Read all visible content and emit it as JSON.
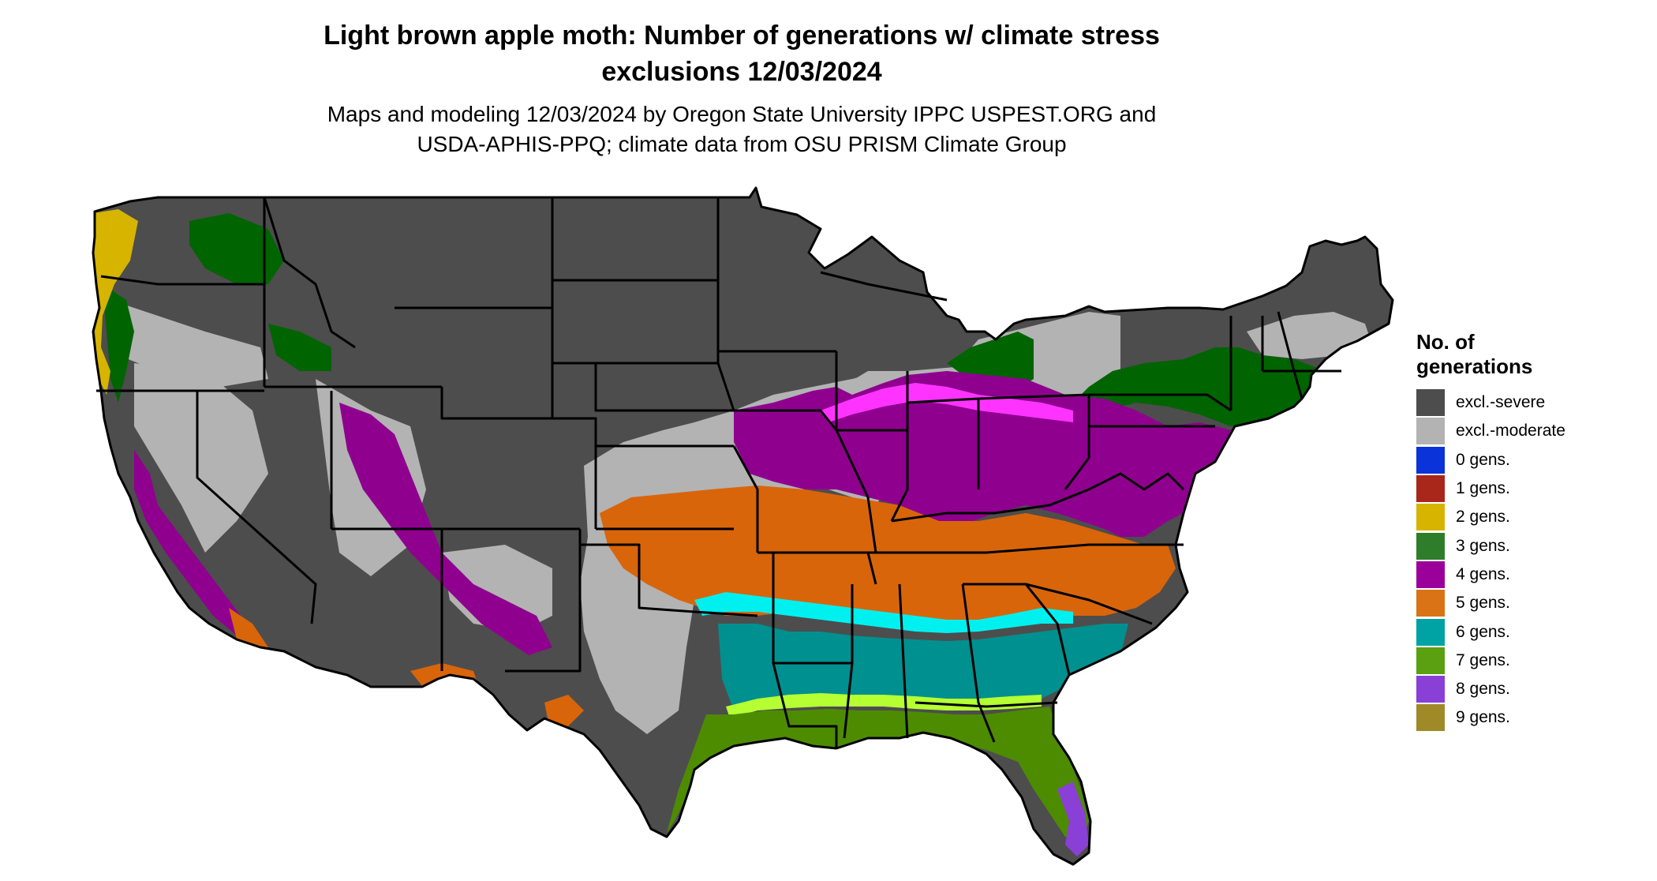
{
  "title_line1": "Light brown apple moth: Number of generations w/ climate stress",
  "title_line2": "exclusions 12/03/2024",
  "subtitle_line1": "Maps and modeling 12/03/2024 by Oregon State University IPPC USPEST.ORG and",
  "subtitle_line2": "USDA-APHIS-PPQ; climate data from OSU PRISM Climate Group",
  "legend": {
    "title_line1": "No. of",
    "title_line2": "generations",
    "items": [
      {
        "label": "excl.-severe",
        "color": "#4d4d4d"
      },
      {
        "label": "excl.-moderate",
        "color": "#b3b3b3"
      },
      {
        "label": "0 gens.",
        "color": "#0a33d9"
      },
      {
        "label": "1 gens.",
        "color": "#a8261a"
      },
      {
        "label": "2 gens.",
        "color": "#d6b400"
      },
      {
        "label": "3 gens.",
        "color": "#2e7d2a"
      },
      {
        "label": "4 gens.",
        "color": "#9b009b"
      },
      {
        "label": "5 gens.",
        "color": "#d97316"
      },
      {
        "label": "6 gens.",
        "color": "#00a3a3"
      },
      {
        "label": "7 gens.",
        "color": "#5aa010"
      },
      {
        "label": "8 gens.",
        "color": "#8a3fd6"
      },
      {
        "label": "9 gens.",
        "color": "#a08a28"
      }
    ]
  },
  "map_colors": {
    "severe": "#4d4d4d",
    "moderate": "#b3b3b3",
    "gen2": "#d6b400",
    "gen3": "#006400",
    "gen4": "#8f008f",
    "gen4_bright": "#ff33ff",
    "gen5": "#d9650a",
    "gen6": "#00908f",
    "gen6_bright": "#00f0f0",
    "gen7": "#4d8c00",
    "gen7_bright": "#b5ff33",
    "gen8": "#8a3fd6",
    "border": "#000000"
  }
}
